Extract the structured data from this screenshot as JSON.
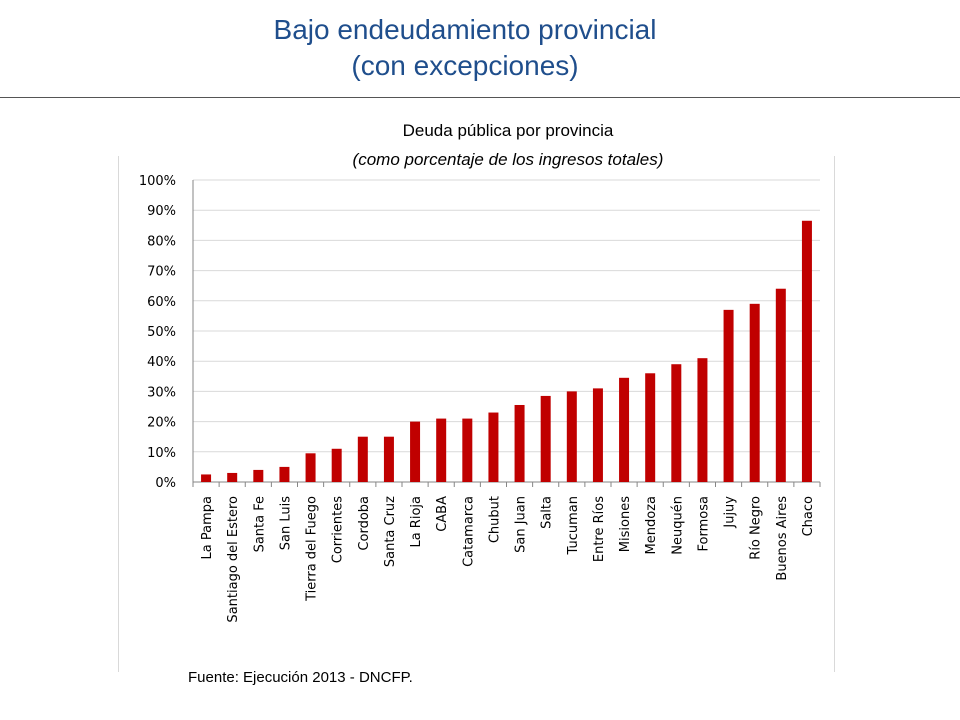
{
  "slide": {
    "title_line1": "Bajo endeudamiento provincial",
    "title_line2": "(con excepciones)",
    "source": "Fuente: Ejecución 2013 - DNCFP."
  },
  "chart_data": {
    "type": "bar",
    "title": "Deuda pública por provincia",
    "subtitle": "(como porcentaje de los ingresos totales)",
    "xlabel": "",
    "ylabel": "",
    "ylim": [
      0,
      100
    ],
    "y_ticks": [
      "0%",
      "10%",
      "20%",
      "30%",
      "40%",
      "50%",
      "60%",
      "70%",
      "80%",
      "90%",
      "100%"
    ],
    "grid": true,
    "legend": "none",
    "bar_color": "#C00000",
    "categories": [
      "La Pampa",
      "Santiago del Estero",
      "Santa Fe",
      "San Luis",
      "Tierra del Fuego",
      "Corrientes",
      "Cordoba",
      "Santa Cruz",
      "La Rioja",
      "CABA",
      "Catamarca",
      "Chubut",
      "San Juan",
      "Salta",
      "Tucuman",
      "Entre Ríos",
      "Misiones",
      "Mendoza",
      "Neuquén",
      "Formosa",
      "Jujuy",
      "Río Negro",
      "Buenos Aires",
      "Chaco"
    ],
    "values": [
      2.5,
      3,
      4,
      5,
      9.5,
      11,
      15,
      15,
      20,
      21,
      21,
      23,
      25.5,
      28.5,
      30,
      31,
      34.5,
      36,
      39,
      41,
      57,
      59,
      64,
      86.5
    ]
  }
}
